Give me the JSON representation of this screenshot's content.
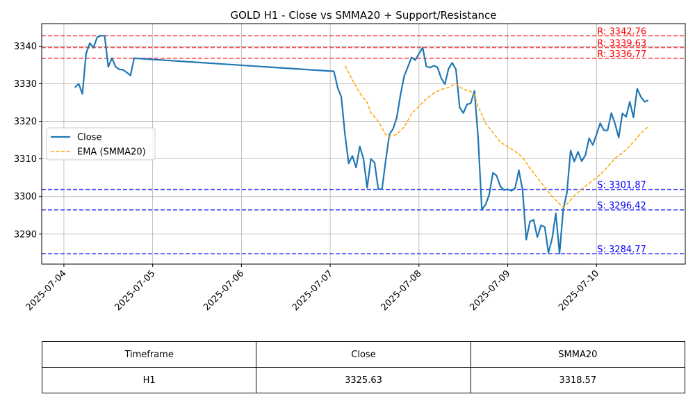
{
  "chart_data": {
    "type": "line",
    "title": "GOLD H1 - Close vs SMMA20 + Support/Resistance",
    "xlabel": "",
    "ylabel": "",
    "x_range": [
      "2025-07-03 18:00",
      "2025-07-11 00:00"
    ],
    "ylim": [
      3282,
      3346
    ],
    "grid": true,
    "legend": {
      "position": "center-left",
      "entries": [
        "Close",
        "EMA (SMMA20)"
      ]
    },
    "x_ticks": [
      "2025-07-04",
      "2025-07-05",
      "2025-07-06",
      "2025-07-07",
      "2025-07-08",
      "2025-07-09",
      "2025-07-10"
    ],
    "y_ticks": [
      3290,
      3300,
      3310,
      3320,
      3330,
      3340
    ],
    "series": [
      {
        "name": "Close",
        "color": "#1f77b4",
        "style": "solid",
        "points": [
          [
            "2025-07-04 03:00",
            3329.0
          ],
          [
            "2025-07-04 04:00",
            3330.0
          ],
          [
            "2025-07-04 05:00",
            3327.3
          ],
          [
            "2025-07-04 06:00",
            3338.0
          ],
          [
            "2025-07-04 07:00",
            3340.8
          ],
          [
            "2025-07-04 08:00",
            3339.6
          ],
          [
            "2025-07-04 09:00",
            3342.4
          ],
          [
            "2025-07-04 10:00",
            3342.8
          ],
          [
            "2025-07-04 11:00",
            3342.8
          ],
          [
            "2025-07-04 12:00",
            3334.5
          ],
          [
            "2025-07-04 13:00",
            3336.8
          ],
          [
            "2025-07-04 14:00",
            3334.5
          ],
          [
            "2025-07-04 15:00",
            3333.8
          ],
          [
            "2025-07-04 16:00",
            3333.7
          ],
          [
            "2025-07-04 17:00",
            3333.0
          ],
          [
            "2025-07-04 18:00",
            3332.2
          ],
          [
            "2025-07-04 19:00",
            3336.8
          ],
          [
            "2025-07-07 01:00",
            3333.3
          ],
          [
            "2025-07-07 02:00",
            3329.0
          ],
          [
            "2025-07-07 03:00",
            3326.5
          ],
          [
            "2025-07-07 04:00",
            3316.5
          ],
          [
            "2025-07-07 05:00",
            3308.8
          ],
          [
            "2025-07-07 06:00",
            3310.8
          ],
          [
            "2025-07-07 07:00",
            3307.7
          ],
          [
            "2025-07-07 08:00",
            3313.3
          ],
          [
            "2025-07-07 09:00",
            3310.0
          ],
          [
            "2025-07-07 10:00",
            3302.3
          ],
          [
            "2025-07-07 11:00",
            3310.0
          ],
          [
            "2025-07-07 12:00",
            3309.0
          ],
          [
            "2025-07-07 13:00",
            3302.0
          ],
          [
            "2025-07-07 14:00",
            3301.9
          ],
          [
            "2025-07-07 15:00",
            3309.5
          ],
          [
            "2025-07-07 16:00",
            3316.5
          ],
          [
            "2025-07-07 17:00",
            3318.0
          ],
          [
            "2025-07-07 18:00",
            3321.0
          ],
          [
            "2025-07-07 19:00",
            3327.0
          ],
          [
            "2025-07-07 20:00",
            3332.0
          ],
          [
            "2025-07-07 21:00",
            3334.5
          ],
          [
            "2025-07-07 22:00",
            3337.0
          ],
          [
            "2025-07-07 23:00",
            3336.3
          ],
          [
            "2025-07-08 00:00",
            3338.0
          ],
          [
            "2025-07-08 01:00",
            3339.6
          ],
          [
            "2025-07-08 02:00",
            3334.6
          ],
          [
            "2025-07-08 03:00",
            3334.3
          ],
          [
            "2025-07-08 04:00",
            3334.8
          ],
          [
            "2025-07-08 05:00",
            3334.4
          ],
          [
            "2025-07-08 06:00",
            3331.5
          ],
          [
            "2025-07-08 07:00",
            3329.9
          ],
          [
            "2025-07-08 08:00",
            3334.0
          ],
          [
            "2025-07-08 09:00",
            3335.6
          ],
          [
            "2025-07-08 10:00",
            3333.8
          ],
          [
            "2025-07-08 11:00",
            3323.7
          ],
          [
            "2025-07-08 12:00",
            3322.2
          ],
          [
            "2025-07-08 13:00",
            3324.5
          ],
          [
            "2025-07-08 14:00",
            3324.8
          ],
          [
            "2025-07-08 15:00",
            3328.1
          ],
          [
            "2025-07-08 16:00",
            3315.5
          ],
          [
            "2025-07-08 17:00",
            3296.5
          ],
          [
            "2025-07-08 18:00",
            3297.8
          ],
          [
            "2025-07-08 19:00",
            3300.5
          ],
          [
            "2025-07-08 20:00",
            3306.3
          ],
          [
            "2025-07-08 21:00",
            3305.5
          ],
          [
            "2025-07-08 22:00",
            3302.7
          ],
          [
            "2025-07-08 23:00",
            3301.7
          ],
          [
            "2025-07-09 00:00",
            3301.9
          ],
          [
            "2025-07-09 01:00",
            3301.5
          ],
          [
            "2025-07-09 02:00",
            3302.2
          ],
          [
            "2025-07-09 03:00",
            3307.0
          ],
          [
            "2025-07-09 04:00",
            3301.8
          ],
          [
            "2025-07-09 05:00",
            3288.5
          ],
          [
            "2025-07-09 06:00",
            3293.3
          ],
          [
            "2025-07-09 07:00",
            3293.8
          ],
          [
            "2025-07-09 08:00",
            3289.2
          ],
          [
            "2025-07-09 09:00",
            3292.3
          ],
          [
            "2025-07-09 10:00",
            3291.9
          ],
          [
            "2025-07-09 11:00",
            3285.0
          ],
          [
            "2025-07-09 12:00",
            3288.8
          ],
          [
            "2025-07-09 13:00",
            3295.5
          ],
          [
            "2025-07-09 14:00",
            3284.8
          ],
          [
            "2025-07-09 15:00",
            3296.5
          ],
          [
            "2025-07-09 16:00",
            3301.0
          ],
          [
            "2025-07-09 17:00",
            3312.2
          ],
          [
            "2025-07-09 18:00",
            3309.3
          ],
          [
            "2025-07-09 19:00",
            3311.9
          ],
          [
            "2025-07-09 20:00",
            3309.4
          ],
          [
            "2025-07-09 21:00",
            3311.0
          ],
          [
            "2025-07-09 22:00",
            3315.5
          ],
          [
            "2025-07-09 23:00",
            3313.7
          ],
          [
            "2025-07-10 00:00",
            3316.5
          ],
          [
            "2025-07-10 01:00",
            3319.5
          ],
          [
            "2025-07-10 02:00",
            3317.6
          ],
          [
            "2025-07-10 03:00",
            3317.6
          ],
          [
            "2025-07-10 04:00",
            3322.2
          ],
          [
            "2025-07-10 05:00",
            3319.4
          ],
          [
            "2025-07-10 06:00",
            3315.7
          ],
          [
            "2025-07-10 07:00",
            3322.1
          ],
          [
            "2025-07-10 08:00",
            3321.2
          ],
          [
            "2025-07-10 09:00",
            3325.2
          ],
          [
            "2025-07-10 10:00",
            3321.0
          ],
          [
            "2025-07-10 11:00",
            3328.7
          ],
          [
            "2025-07-10 12:00",
            3326.5
          ],
          [
            "2025-07-10 13:00",
            3325.2
          ],
          [
            "2025-07-10 14:00",
            3325.6
          ]
        ]
      },
      {
        "name": "EMA (SMMA20)",
        "color": "#ffa500",
        "style": "dashed",
        "points": [
          [
            "2025-07-07 04:00",
            3334.8
          ],
          [
            "2025-07-07 06:00",
            3331.0
          ],
          [
            "2025-07-07 08:00",
            3327.5
          ],
          [
            "2025-07-07 10:00",
            3325.0
          ],
          [
            "2025-07-07 11:00",
            3322.3
          ],
          [
            "2025-07-07 13:00",
            3320.0
          ],
          [
            "2025-07-07 15:00",
            3316.5
          ],
          [
            "2025-07-07 16:00",
            3316.0
          ],
          [
            "2025-07-07 18:00",
            3316.5
          ],
          [
            "2025-07-07 20:00",
            3318.5
          ],
          [
            "2025-07-07 22:00",
            3322.0
          ],
          [
            "2025-07-08 00:00",
            3324.0
          ],
          [
            "2025-07-08 02:00",
            3326.0
          ],
          [
            "2025-07-08 04:00",
            3327.5
          ],
          [
            "2025-07-08 06:00",
            3328.5
          ],
          [
            "2025-07-08 08:00",
            3329.0
          ],
          [
            "2025-07-08 10:00",
            3330.0
          ],
          [
            "2025-07-08 12:00",
            3328.5
          ],
          [
            "2025-07-08 14:00",
            3328.0
          ],
          [
            "2025-07-08 15:00",
            3327.0
          ],
          [
            "2025-07-08 16:00",
            3324.0
          ],
          [
            "2025-07-08 18:00",
            3319.5
          ],
          [
            "2025-07-08 20:00",
            3317.0
          ],
          [
            "2025-07-08 22:00",
            3314.5
          ],
          [
            "2025-07-09 00:00",
            3313.2
          ],
          [
            "2025-07-09 02:00",
            3312.0
          ],
          [
            "2025-07-09 04:00",
            3310.5
          ],
          [
            "2025-07-09 06:00",
            3307.5
          ],
          [
            "2025-07-09 08:00",
            3305.0
          ],
          [
            "2025-07-09 10:00",
            3302.5
          ],
          [
            "2025-07-09 12:00",
            3300.0
          ],
          [
            "2025-07-09 14:00",
            3298.0
          ],
          [
            "2025-07-09 15:00",
            3297.2
          ],
          [
            "2025-07-09 16:00",
            3298.0
          ],
          [
            "2025-07-09 18:00",
            3300.2
          ],
          [
            "2025-07-09 20:00",
            3302.0
          ],
          [
            "2025-07-09 22:00",
            3303.5
          ],
          [
            "2025-07-10 00:00",
            3305.0
          ],
          [
            "2025-07-10 02:00",
            3306.8
          ],
          [
            "2025-07-10 04:00",
            3309.0
          ],
          [
            "2025-07-10 05:00",
            3310.2
          ],
          [
            "2025-07-10 07:00",
            3311.5
          ],
          [
            "2025-07-10 09:00",
            3313.5
          ],
          [
            "2025-07-10 10:00",
            3314.5
          ],
          [
            "2025-07-10 12:00",
            3316.8
          ],
          [
            "2025-07-10 14:00",
            3318.6
          ]
        ]
      }
    ],
    "levels": [
      {
        "kind": "resistance",
        "value": 3342.76,
        "label": "R: 3342.76",
        "color": "#ff0000"
      },
      {
        "kind": "resistance",
        "value": 3339.63,
        "label": "R: 3339.63",
        "color": "#ff0000"
      },
      {
        "kind": "resistance",
        "value": 3336.77,
        "label": "R: 3336.77",
        "color": "#ff0000"
      },
      {
        "kind": "support",
        "value": 3301.87,
        "label": "S: 3301.87",
        "color": "#0000ff"
      },
      {
        "kind": "support",
        "value": 3296.42,
        "label": "S: 3296.42",
        "color": "#0000ff"
      },
      {
        "kind": "support",
        "value": 3284.77,
        "label": "S: 3284.77",
        "color": "#0000ff"
      }
    ]
  },
  "table": {
    "headers": [
      "Timeframe",
      "Close",
      "SMMA20"
    ],
    "rows": [
      [
        "H1",
        "3325.63",
        "3318.57"
      ]
    ]
  }
}
